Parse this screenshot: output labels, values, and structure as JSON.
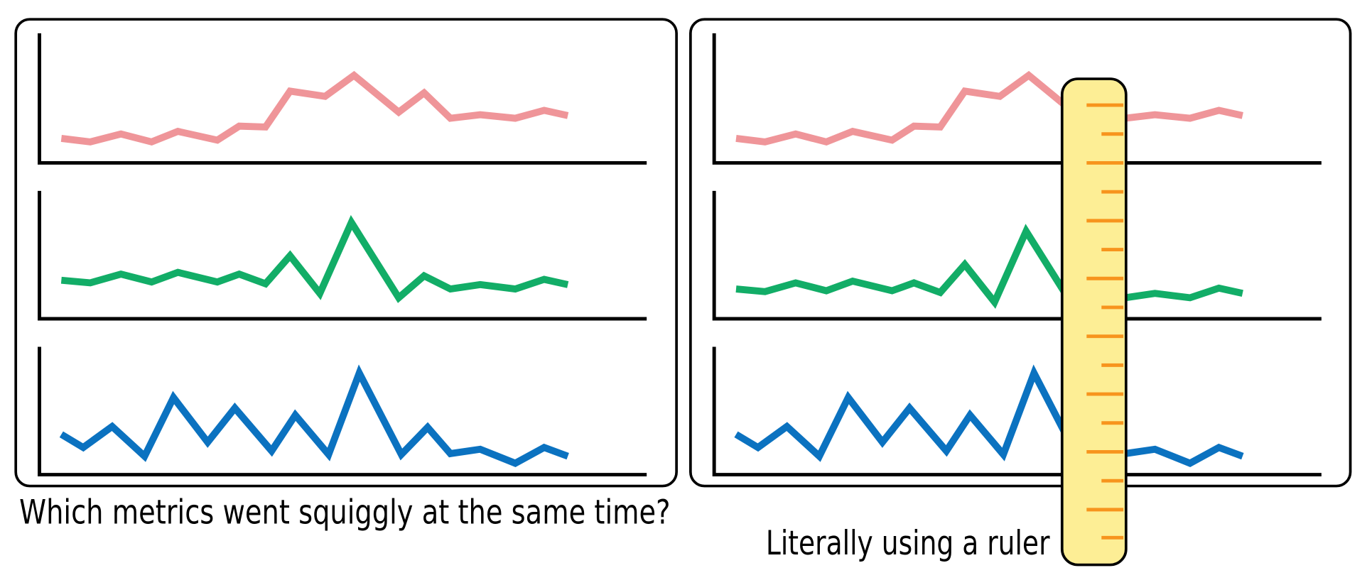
{
  "captions": {
    "left": "Which metrics went squiggly at the same time?",
    "right": "Literally using a ruler"
  }
}
